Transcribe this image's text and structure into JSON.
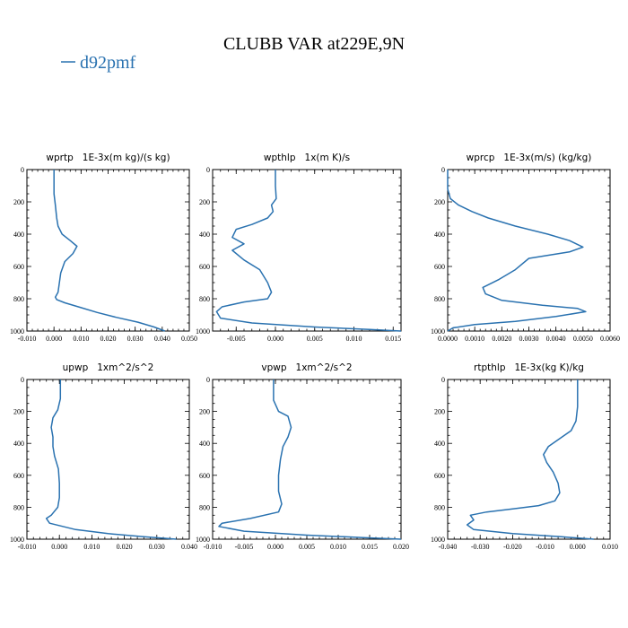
{
  "title": "CLUBB VAR at229E,9N",
  "legend": {
    "label": "d92pmf",
    "color": "#2a72b0"
  },
  "chart_data": [
    {
      "type": "line",
      "title": "wprtp   1E-3x(m kg)/(s kg)",
      "xlim": [
        -0.01,
        0.05
      ],
      "ylim": [
        1000,
        0
      ],
      "xticks": [
        -0.01,
        0.0,
        0.01,
        0.02,
        0.03,
        0.04,
        0.05
      ],
      "xtick_labels": [
        "-0.010",
        "0.000",
        "0.010",
        "0.020",
        "0.030",
        "0.040",
        "0.050"
      ],
      "yticks": [
        0,
        200,
        400,
        600,
        800,
        1000
      ],
      "ytick_labels": [
        "0",
        "200",
        "400",
        "600",
        "800",
        "1000"
      ],
      "series": [
        {
          "name": "d92pmf",
          "points": [
            [
              0.0,
              0
            ],
            [
              0.0,
              150
            ],
            [
              0.0005,
              220
            ],
            [
              0.001,
              300
            ],
            [
              0.0015,
              350
            ],
            [
              0.003,
              400
            ],
            [
              0.006,
              440
            ],
            [
              0.0085,
              475
            ],
            [
              0.007,
              520
            ],
            [
              0.004,
              570
            ],
            [
              0.0025,
              640
            ],
            [
              0.002,
              700
            ],
            [
              0.0015,
              760
            ],
            [
              0.0005,
              790
            ],
            [
              0.001,
              805
            ],
            [
              0.004,
              825
            ],
            [
              0.01,
              855
            ],
            [
              0.016,
              885
            ],
            [
              0.023,
              915
            ],
            [
              0.031,
              945
            ],
            [
              0.037,
              975
            ],
            [
              0.041,
              1000
            ]
          ]
        }
      ]
    },
    {
      "type": "line",
      "title": "wpthlp   1x(m K)/s",
      "xlim": [
        -0.008,
        0.016
      ],
      "ylim": [
        1000,
        0
      ],
      "xticks": [
        -0.005,
        0.0,
        0.005,
        0.01,
        0.015
      ],
      "xtick_labels": [
        "-0.005",
        "0.000",
        "0.005",
        "0.010",
        "0.015"
      ],
      "yticks": [
        0,
        200,
        400,
        600,
        800,
        1000
      ],
      "ytick_labels": [
        "0",
        "200",
        "400",
        "600",
        "800",
        "1000"
      ],
      "series": [
        {
          "name": "d92pmf",
          "points": [
            [
              0.0,
              0
            ],
            [
              0.0,
              100
            ],
            [
              0.0001,
              180
            ],
            [
              -0.0005,
              220
            ],
            [
              -0.0003,
              260
            ],
            [
              -0.001,
              300
            ],
            [
              -0.003,
              340
            ],
            [
              -0.005,
              370
            ],
            [
              -0.0055,
              420
            ],
            [
              -0.004,
              460
            ],
            [
              -0.0055,
              500
            ],
            [
              -0.004,
              560
            ],
            [
              -0.002,
              620
            ],
            [
              -0.001,
              700
            ],
            [
              -0.0005,
              760
            ],
            [
              -0.001,
              800
            ],
            [
              -0.004,
              820
            ],
            [
              -0.0068,
              850
            ],
            [
              -0.0075,
              880
            ],
            [
              -0.007,
              920
            ],
            [
              -0.003,
              950
            ],
            [
              0.005,
              975
            ],
            [
              0.012,
              990
            ],
            [
              0.016,
              1000
            ]
          ]
        }
      ]
    },
    {
      "type": "line",
      "title": "wprcp   1E-3x(m/s) (kg/kg)",
      "xlim": [
        0.0,
        0.006
      ],
      "ylim": [
        1000,
        0
      ],
      "xticks": [
        0.0,
        0.001,
        0.002,
        0.003,
        0.004,
        0.005,
        0.006
      ],
      "xtick_labels": [
        "0.0000",
        "0.0010",
        "0.0020",
        "0.0030",
        "0.0040",
        "0.0050",
        "0.0060"
      ],
      "yticks": [
        0,
        200,
        400,
        600,
        800,
        1000
      ],
      "ytick_labels": [
        "0",
        "200",
        "400",
        "600",
        "800",
        "1000"
      ],
      "series": [
        {
          "name": "d92pmf",
          "points": [
            [
              0.0,
              0
            ],
            [
              0.0,
              120
            ],
            [
              0.0001,
              180
            ],
            [
              0.0004,
              220
            ],
            [
              0.0009,
              260
            ],
            [
              0.0015,
              300
            ],
            [
              0.0025,
              350
            ],
            [
              0.0037,
              400
            ],
            [
              0.0045,
              440
            ],
            [
              0.005,
              480
            ],
            [
              0.0045,
              510
            ],
            [
              0.003,
              550
            ],
            [
              0.0025,
              620
            ],
            [
              0.0019,
              680
            ],
            [
              0.0013,
              730
            ],
            [
              0.0014,
              770
            ],
            [
              0.002,
              810
            ],
            [
              0.0035,
              840
            ],
            [
              0.0048,
              860
            ],
            [
              0.0051,
              880
            ],
            [
              0.004,
              910
            ],
            [
              0.0025,
              940
            ],
            [
              0.001,
              960
            ],
            [
              0.0002,
              980
            ],
            [
              0.0,
              1000
            ]
          ]
        }
      ]
    },
    {
      "type": "line",
      "title": "upwp   1xm^2/s^2",
      "xlim": [
        -0.01,
        0.04
      ],
      "ylim": [
        1000,
        0
      ],
      "xticks": [
        -0.01,
        0.0,
        0.01,
        0.02,
        0.03,
        0.04
      ],
      "xtick_labels": [
        "-0.010",
        "0.000",
        "0.010",
        "0.020",
        "0.030",
        "0.040"
      ],
      "yticks": [
        0,
        200,
        400,
        600,
        800,
        1000
      ],
      "ytick_labels": [
        "0",
        "200",
        "400",
        "600",
        "800",
        "1000"
      ],
      "series": [
        {
          "name": "d92pmf",
          "points": [
            [
              0.0003,
              0
            ],
            [
              0.0003,
              120
            ],
            [
              -0.0005,
              190
            ],
            [
              -0.002,
              240
            ],
            [
              -0.0025,
              300
            ],
            [
              -0.002,
              360
            ],
            [
              -0.002,
              420
            ],
            [
              -0.0015,
              480
            ],
            [
              -0.0003,
              560
            ],
            [
              0.0,
              650
            ],
            [
              0.0,
              740
            ],
            [
              -0.0005,
              800
            ],
            [
              -0.0025,
              850
            ],
            [
              -0.004,
              870
            ],
            [
              -0.003,
              900
            ],
            [
              0.005,
              940
            ],
            [
              0.015,
              965
            ],
            [
              0.026,
              985
            ],
            [
              0.036,
              1000
            ]
          ]
        }
      ]
    },
    {
      "type": "line",
      "title": "vpwp   1xm^2/s^2",
      "xlim": [
        -0.01,
        0.02
      ],
      "ylim": [
        1000,
        0
      ],
      "xticks": [
        -0.01,
        -0.005,
        0.0,
        0.005,
        0.01,
        0.015,
        0.02
      ],
      "xtick_labels": [
        "-0.010",
        "-0.005",
        "0.000",
        "0.005",
        "0.010",
        "0.015",
        "0.020"
      ],
      "yticks": [
        0,
        200,
        400,
        600,
        800,
        1000
      ],
      "ytick_labels": [
        "0",
        "200",
        "400",
        "600",
        "800",
        "1000"
      ],
      "series": [
        {
          "name": "d92pmf",
          "points": [
            [
              -0.0003,
              0
            ],
            [
              -0.0003,
              130
            ],
            [
              0.0005,
              200
            ],
            [
              0.002,
              230
            ],
            [
              0.0025,
              300
            ],
            [
              0.002,
              360
            ],
            [
              0.0012,
              420
            ],
            [
              0.0008,
              500
            ],
            [
              0.0005,
              600
            ],
            [
              0.0005,
              700
            ],
            [
              0.001,
              780
            ],
            [
              0.0005,
              830
            ],
            [
              -0.004,
              870
            ],
            [
              -0.0085,
              900
            ],
            [
              -0.009,
              920
            ],
            [
              -0.005,
              950
            ],
            [
              0.005,
              975
            ],
            [
              0.014,
              990
            ],
            [
              0.02,
              1000
            ]
          ]
        }
      ]
    },
    {
      "type": "line",
      "title": "rtpthlp   1E-3x(kg K)/kg",
      "xlim": [
        -0.04,
        0.01
      ],
      "ylim": [
        1000,
        0
      ],
      "xticks": [
        -0.04,
        -0.03,
        -0.02,
        -0.01,
        0.0,
        0.01
      ],
      "xtick_labels": [
        "-0.040",
        "-0.030",
        "-0.020",
        "-0.010",
        "0.000",
        "0.010"
      ],
      "yticks": [
        0,
        200,
        400,
        600,
        800,
        1000
      ],
      "ytick_labels": [
        "0",
        "200",
        "400",
        "600",
        "800",
        "1000"
      ],
      "series": [
        {
          "name": "d92pmf",
          "points": [
            [
              0.0,
              0
            ],
            [
              0.0,
              170
            ],
            [
              -0.0005,
              260
            ],
            [
              -0.002,
              320
            ],
            [
              -0.0055,
              370
            ],
            [
              -0.009,
              420
            ],
            [
              -0.0105,
              470
            ],
            [
              -0.0095,
              520
            ],
            [
              -0.0075,
              580
            ],
            [
              -0.006,
              650
            ],
            [
              -0.0055,
              710
            ],
            [
              -0.007,
              760
            ],
            [
              -0.012,
              790
            ],
            [
              -0.02,
              810
            ],
            [
              -0.028,
              830
            ],
            [
              -0.033,
              850
            ],
            [
              -0.032,
              880
            ],
            [
              -0.034,
              910
            ],
            [
              -0.032,
              940
            ],
            [
              -0.02,
              965
            ],
            [
              -0.005,
              985
            ],
            [
              0.005,
              1000
            ]
          ]
        }
      ]
    }
  ]
}
